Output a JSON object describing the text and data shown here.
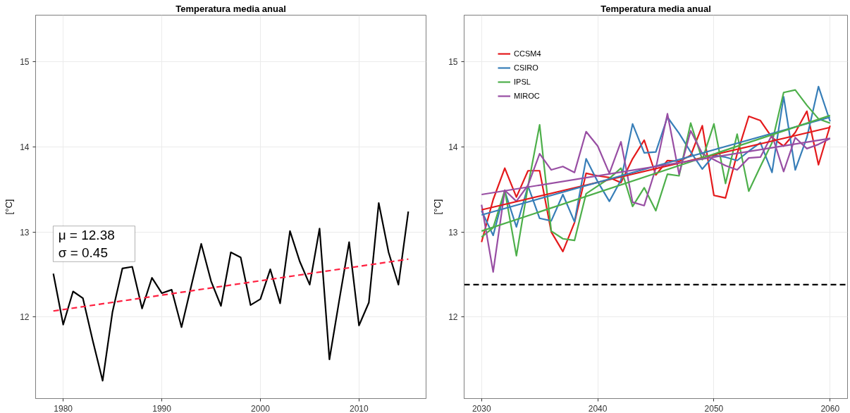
{
  "chart_data": [
    {
      "type": "line",
      "title": "Temperatura media anual",
      "ylabel": "[°C]",
      "x": [
        1979,
        1980,
        1981,
        1982,
        1983,
        1984,
        1985,
        1986,
        1987,
        1988,
        1989,
        1990,
        1991,
        1992,
        1993,
        1994,
        1995,
        1996,
        1997,
        1998,
        1999,
        2000,
        2001,
        2002,
        2003,
        2004,
        2005,
        2006,
        2007,
        2008,
        2009,
        2010,
        2011,
        2012,
        2013,
        2014,
        2015
      ],
      "series": [
        {
          "color": "#000000",
          "values": [
            12.51,
            11.91,
            12.3,
            12.22,
            11.72,
            11.25,
            12.06,
            12.57,
            12.59,
            12.1,
            12.46,
            12.28,
            12.32,
            11.88,
            12.37,
            12.86,
            12.42,
            12.13,
            12.76,
            12.7,
            12.14,
            12.21,
            12.56,
            12.16,
            13.01,
            12.65,
            12.38,
            13.04,
            11.5,
            12.2,
            12.88,
            11.9,
            12.17,
            13.34,
            12.76,
            12.38,
            13.24
          ]
        },
        {
          "type": "line",
          "x": [
            1979,
            2015
          ],
          "values": [
            12.07,
            12.68
          ],
          "color": "#ff2040",
          "line_style": "dashed"
        }
      ],
      "xlim": [
        1977.2,
        2016.8
      ],
      "ylim": [
        11.04,
        15.55
      ],
      "xticks": [
        1980,
        1990,
        2000,
        2010
      ],
      "yticks": [
        12,
        13,
        14,
        15
      ],
      "grid": true,
      "annotations": [
        "μ = 12.38",
        "σ = 0.45"
      ]
    },
    {
      "type": "line",
      "title": "Temperatura media anual",
      "ylabel": "[°C]",
      "x": [
        2030,
        2031,
        2032,
        2033,
        2034,
        2035,
        2036,
        2037,
        2038,
        2039,
        2040,
        2041,
        2042,
        2043,
        2044,
        2045,
        2046,
        2047,
        2048,
        2049,
        2050,
        2051,
        2052,
        2053,
        2054,
        2055,
        2056,
        2057,
        2058,
        2059,
        2060
      ],
      "series": [
        {
          "name": "CCSM4",
          "color": "#e41a1c",
          "values": [
            12.88,
            13.38,
            13.75,
            13.41,
            13.72,
            13.72,
            13.0,
            12.77,
            13.11,
            13.69,
            13.66,
            13.64,
            13.58,
            13.86,
            14.08,
            13.67,
            13.84,
            13.83,
            13.9,
            14.25,
            13.43,
            13.4,
            13.92,
            14.36,
            14.31,
            14.11,
            14.01,
            14.17,
            14.42,
            13.79,
            14.25
          ]
        },
        {
          "name": "CSIRO",
          "color": "#377eb8",
          "values": [
            13.25,
            12.96,
            13.48,
            13.06,
            13.54,
            13.16,
            13.13,
            13.44,
            13.12,
            13.86,
            13.59,
            13.36,
            13.61,
            14.27,
            13.93,
            13.94,
            14.35,
            14.16,
            13.94,
            13.74,
            13.9,
            13.88,
            13.84,
            13.95,
            14.05,
            13.7,
            14.59,
            13.73,
            14.11,
            14.71,
            14.3
          ]
        },
        {
          "name": "IPSL",
          "color": "#4daf4a",
          "values": [
            12.94,
            13.05,
            13.49,
            12.72,
            13.54,
            14.26,
            13.01,
            12.92,
            12.9,
            13.45,
            13.54,
            13.63,
            13.75,
            13.3,
            13.52,
            13.25,
            13.68,
            13.66,
            14.28,
            13.85,
            14.27,
            13.57,
            14.15,
            13.48,
            13.77,
            14.05,
            14.64,
            14.67,
            14.49,
            14.33,
            14.28
          ]
        },
        {
          "name": "MIROC",
          "color": "#984ea3",
          "values": [
            13.32,
            12.53,
            13.49,
            13.36,
            13.55,
            13.92,
            13.73,
            13.77,
            13.7,
            14.18,
            14.01,
            13.69,
            14.06,
            13.35,
            13.31,
            13.75,
            14.39,
            13.68,
            14.19,
            13.92,
            13.85,
            13.78,
            13.73,
            13.87,
            13.88,
            14.14,
            13.71,
            14.11,
            13.98,
            14.03,
            14.1
          ]
        },
        {
          "type": "line",
          "x": [
            2030,
            2060
          ],
          "values": [
            13.26,
            14.23
          ],
          "color": "#e41a1c"
        },
        {
          "type": "line",
          "x": [
            2030,
            2060
          ],
          "values": [
            13.2,
            14.35
          ],
          "color": "#377eb8"
        },
        {
          "type": "line",
          "x": [
            2030,
            2060
          ],
          "values": [
            13.01,
            14.37
          ],
          "color": "#4daf4a"
        },
        {
          "type": "line",
          "x": [
            2030,
            2060
          ],
          "values": [
            13.44,
            14.1
          ],
          "color": "#984ea3"
        }
      ],
      "xlim": [
        2028.5,
        2061.5
      ],
      "ylim": [
        11.04,
        15.55
      ],
      "xticks": [
        2030,
        2040,
        2050,
        2060
      ],
      "yticks": [
        12,
        13,
        14,
        15
      ],
      "grid": true,
      "legend": "top left",
      "ref_lines": [
        {
          "axis": "y",
          "value": 12.38,
          "color": "#000000",
          "line_style": "dashed"
        }
      ]
    }
  ]
}
